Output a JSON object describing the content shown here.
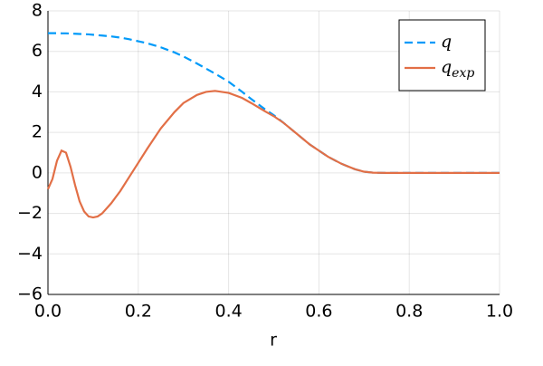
{
  "chart_data": {
    "type": "line",
    "x_label": "r",
    "x": [
      0,
      0.01,
      0.02,
      0.03,
      0.04,
      0.05,
      0.06,
      0.07,
      0.08,
      0.09,
      0.1,
      0.11,
      0.12,
      0.14,
      0.16,
      0.18,
      0.2,
      0.22,
      0.25,
      0.28,
      0.3,
      0.33,
      0.35,
      0.37,
      0.4,
      0.43,
      0.45,
      0.48,
      0.5,
      0.52,
      0.55,
      0.58,
      0.6,
      0.62,
      0.65,
      0.68,
      0.7,
      0.72,
      0.75,
      0.8,
      0.85,
      0.9,
      0.95,
      1.0
    ],
    "series": [
      {
        "name": "q",
        "color": "#009af9",
        "dash": true,
        "values": [
          6.9,
          6.9,
          6.9,
          6.89,
          6.89,
          6.88,
          6.87,
          6.86,
          6.85,
          6.84,
          6.82,
          6.8,
          6.78,
          6.74,
          6.68,
          6.6,
          6.5,
          6.4,
          6.2,
          5.95,
          5.75,
          5.4,
          5.15,
          4.9,
          4.5,
          4.0,
          3.65,
          3.15,
          2.85,
          2.5,
          1.95,
          1.4,
          1.1,
          0.8,
          0.45,
          0.18,
          0.06,
          0.01,
          0,
          0,
          0,
          0,
          0,
          0
        ]
      },
      {
        "name": "q_exp",
        "color": "#e26f46",
        "dash": false,
        "values": [
          -0.8,
          -0.3,
          0.6,
          1.1,
          1.0,
          0.3,
          -0.6,
          -1.4,
          -1.9,
          -2.15,
          -2.2,
          -2.15,
          -2.0,
          -1.5,
          -0.9,
          -0.2,
          0.5,
          1.2,
          2.2,
          3.0,
          3.45,
          3.85,
          4.0,
          4.05,
          3.95,
          3.7,
          3.45,
          3.05,
          2.8,
          2.5,
          1.95,
          1.4,
          1.1,
          0.8,
          0.45,
          0.18,
          0.06,
          0.01,
          0,
          0,
          0,
          0,
          0,
          0
        ]
      }
    ],
    "xlim": [
      0,
      1.0
    ],
    "xticks": [
      {
        "value": 0,
        "label": "0.0"
      },
      0.2,
      0.4,
      0.6,
      0.8,
      {
        "value": 1.0,
        "label": "1.0"
      }
    ],
    "ylim": [
      -6,
      8
    ],
    "yticks": [
      {
        "value": -6,
        "label": "−6"
      },
      {
        "value": -4,
        "label": "−4"
      },
      {
        "value": -2,
        "label": "−2"
      },
      0,
      2,
      4,
      6,
      8
    ],
    "grid": true,
    "legend": "top-right"
  }
}
